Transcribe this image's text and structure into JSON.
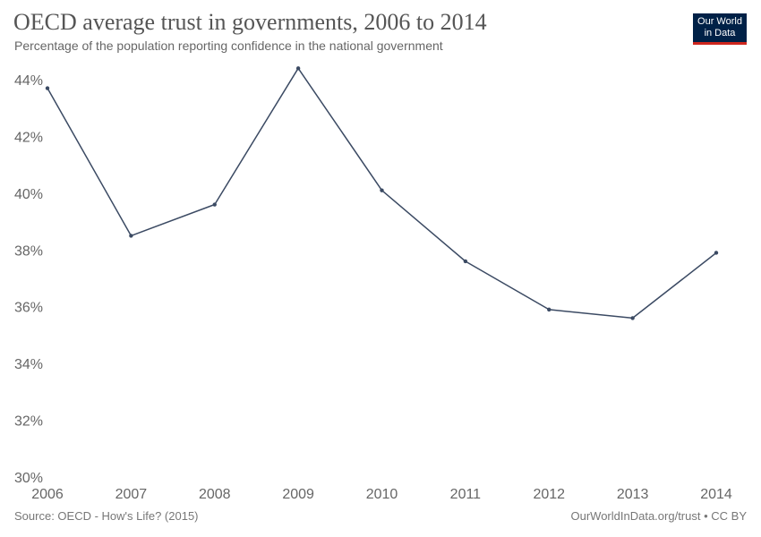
{
  "header": {
    "title": "OECD average trust in governments, 2006 to 2014",
    "subtitle": "Percentage of the population reporting confidence in the national government"
  },
  "logo": {
    "line1": "Our World",
    "line2": "in Data",
    "bg_color": "#002147",
    "accent_color": "#ce261e"
  },
  "footer": {
    "source": "Source: OECD - How's Life? (2015)",
    "license": "OurWorldInData.org/trust • CC BY"
  },
  "chart_data": {
    "type": "line",
    "title": "OECD average trust in governments, 2006 to 2014",
    "subtitle": "Percentage of the population reporting confidence in the national government",
    "x": [
      2006,
      2007,
      2008,
      2009,
      2010,
      2011,
      2012,
      2013,
      2014
    ],
    "series": [
      {
        "values": [
          43.7,
          38.5,
          39.6,
          44.4,
          40.1,
          37.6,
          35.9,
          35.6,
          37.9
        ],
        "color": "#3b4a63"
      }
    ],
    "ylim": [
      30,
      44
    ],
    "yticks": [
      30,
      32,
      34,
      36,
      38,
      40,
      42,
      44
    ],
    "y_tick_format": "percent",
    "xlabel": "",
    "ylabel": "",
    "grid": false,
    "legend": "none"
  }
}
